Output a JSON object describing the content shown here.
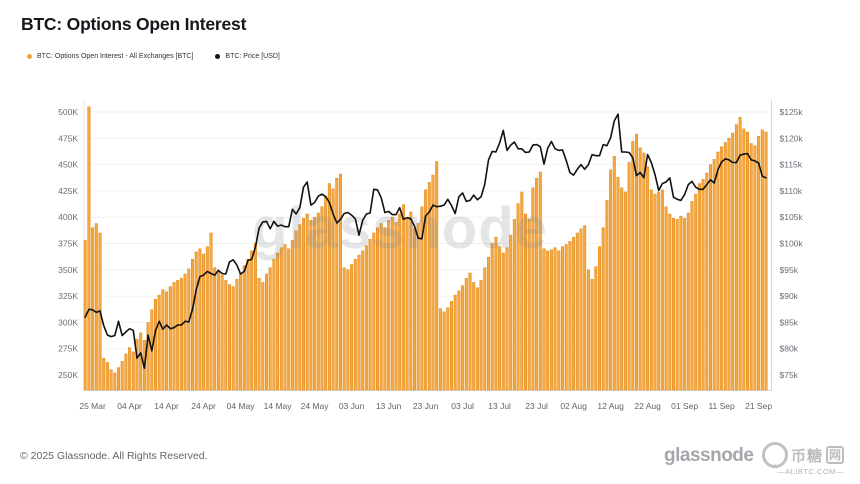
{
  "meta": {
    "title": "BTC: Options Open Interest"
  },
  "legend": [
    {
      "label": "BTC: Options Open Interest - All Exchanges [BTC]",
      "color": "#f7a33a"
    },
    {
      "label": "BTC: Price [USD]",
      "color": "#111111"
    }
  ],
  "watermark": "glassnode",
  "icons": {
    "star": "★"
  },
  "footer": {
    "copyright": "© 2025 Glassnode. All Rights Reserved.",
    "logo": "glassnode",
    "watermark_cn_text": "币糖",
    "watermark_cn_boxed": "网",
    "watermark_domain": "—ALIBTC.COM—"
  },
  "chart_data": {
    "type": "combo",
    "title": "BTC: Options Open Interest",
    "frequency": "daily",
    "start_date": "2025-03-23",
    "grid": "horizontal-only",
    "legend_position": "top-left",
    "x_tick_labels": [
      "25 Mar",
      "04 Apr",
      "14 Apr",
      "24 Apr",
      "04 May",
      "14 May",
      "24 May",
      "03 Jun",
      "13 Jun",
      "23 Jun",
      "03 Jul",
      "13 Jul",
      "23 Jul",
      "02 Aug",
      "12 Aug",
      "22 Aug",
      "01 Sep",
      "11 Sep",
      "21 Sep"
    ],
    "left_axis": {
      "ticks": [
        "500K",
        "475K",
        "450K",
        "425K",
        "400K",
        "375K",
        "350K",
        "325K",
        "300K",
        "275K",
        "250K"
      ],
      "min": 235,
      "max": 510,
      "unit": "BTC (thousands)"
    },
    "right_axis": {
      "ticks": [
        "$125k",
        "$120k",
        "$115k",
        "$110k",
        "$105k",
        "$100k",
        "$95k",
        "$90k",
        "$85k",
        "$80k",
        "$75k"
      ],
      "min": 75,
      "max": 125,
      "unit": "USD (thousands)"
    },
    "series": [
      {
        "name": "BTC: Options Open Interest - All Exchanges [BTC]",
        "type": "bar",
        "color": "#f6a73e",
        "unit": "K BTC",
        "values": [
          378,
          505,
          390,
          394,
          385,
          266,
          262,
          255,
          252,
          257,
          263,
          270,
          276,
          272,
          284,
          290,
          283,
          300,
          312,
          322,
          326,
          331,
          329,
          334,
          338,
          340,
          342,
          346,
          351,
          360,
          367,
          370,
          365,
          372,
          385,
          352,
          348,
          345,
          340,
          336,
          334,
          341,
          347,
          354,
          360,
          368,
          375,
          342,
          338,
          346,
          352,
          360,
          366,
          371,
          374,
          370,
          378,
          387,
          393,
          399,
          403,
          397,
          400,
          404,
          410,
          420,
          432,
          427,
          437,
          441,
          352,
          350,
          355,
          360,
          364,
          368,
          373,
          379,
          385,
          390,
          394,
          390,
          397,
          400,
          395,
          403,
          412,
          399,
          405,
          389,
          394,
          410,
          426,
          433,
          440,
          453,
          313,
          310,
          314,
          320,
          326,
          330,
          335,
          342,
          347,
          338,
          333,
          340,
          352,
          362,
          375,
          381,
          372,
          366,
          371,
          383,
          398,
          413,
          424,
          403,
          398,
          428,
          437,
          443,
          370,
          368,
          369,
          371,
          368,
          372,
          374,
          377,
          381,
          385,
          389,
          392,
          350,
          341,
          353,
          372,
          390,
          416,
          445,
          458,
          438,
          428,
          424,
          452,
          472,
          479,
          466,
          461,
          448,
          426,
          422,
          424,
          426,
          410,
          403,
          399,
          398,
          401,
          399,
          404,
          415,
          422,
          432,
          436,
          442,
          450,
          455,
          462,
          467,
          471,
          475,
          480,
          488,
          495,
          484,
          481,
          470,
          468,
          477,
          483,
          481
        ]
      },
      {
        "name": "BTC: Price [USD]",
        "type": "line",
        "color": "#111111",
        "unit": "USD thousands",
        "values": [
          86.0,
          87.5,
          87.4,
          86.9,
          87.2,
          84.4,
          82.6,
          82.3,
          82.5,
          85.2,
          82.5,
          83.2,
          83.8,
          83.5,
          78.2,
          79.2,
          76.3,
          82.6,
          79.6,
          83.4,
          85.2,
          83.7,
          84.5,
          83.8,
          84.0,
          84.5,
          84.5,
          85.2,
          85.1,
          87.5,
          91.2,
          93.7,
          94.0,
          94.7,
          94.3,
          94.0,
          94.9,
          94.3,
          94.2,
          96.5,
          96.9,
          95.9,
          94.2,
          94.7,
          96.8,
          97.0,
          99.3,
          102.9,
          104.1,
          104.2,
          102.8,
          104.2,
          103.3,
          103.5,
          103.2,
          103.2,
          106.5,
          105.6,
          106.8,
          110.7,
          111.7,
          107.3,
          107.8,
          109.0,
          109.4,
          108.9,
          107.8,
          105.6,
          103.9,
          104.6,
          105.7,
          105.9,
          105.4,
          104.7,
          101.6,
          104.4,
          105.6,
          105.8,
          110.3,
          110.2,
          108.7,
          105.9,
          106.1,
          105.5,
          105.5,
          106.8,
          104.6,
          104.9,
          104.7,
          103.3,
          101.0,
          100.9,
          105.2,
          106.0,
          107.3,
          107.0,
          107.1,
          107.3,
          108.4,
          107.2,
          105.7,
          108.9,
          109.6,
          108.0,
          108.2,
          109.2,
          108.3,
          108.9,
          111.3,
          115.9,
          117.5,
          117.4,
          119.1,
          121.5,
          117.7,
          118.7,
          119.3,
          118.0,
          118.0,
          117.3,
          117.4,
          118.7,
          118.8,
          118.4,
          115.1,
          118.1,
          119.4,
          118.0,
          117.7,
          117.8,
          115.8,
          113.5,
          113.0,
          114.1,
          115.0,
          114.1,
          115.0,
          116.9,
          116.7,
          116.7,
          118.8,
          118.6,
          120.1,
          123.3,
          124.6,
          117.4,
          117.4,
          117.3,
          116.3,
          112.9,
          113.5,
          112.5,
          116.9,
          115.4,
          113.1,
          110.1,
          111.4,
          111.7,
          112.5,
          108.8,
          108.4,
          108.2,
          109.3,
          111.2,
          111.8,
          110.7,
          110.3,
          110.3,
          111.2,
          112.1,
          111.5,
          114.0,
          115.5,
          116.1,
          115.9,
          115.4,
          115.4,
          116.8,
          117.0,
          117.1,
          115.9,
          115.7,
          115.3,
          112.8,
          112.5
        ]
      }
    ],
    "colors": {
      "bar_fill": "#f6a73e",
      "bar_stroke": "#de8a1e",
      "line": "#111111",
      "gridline": "#f2f2f3",
      "axis_label": "#676e75"
    }
  }
}
